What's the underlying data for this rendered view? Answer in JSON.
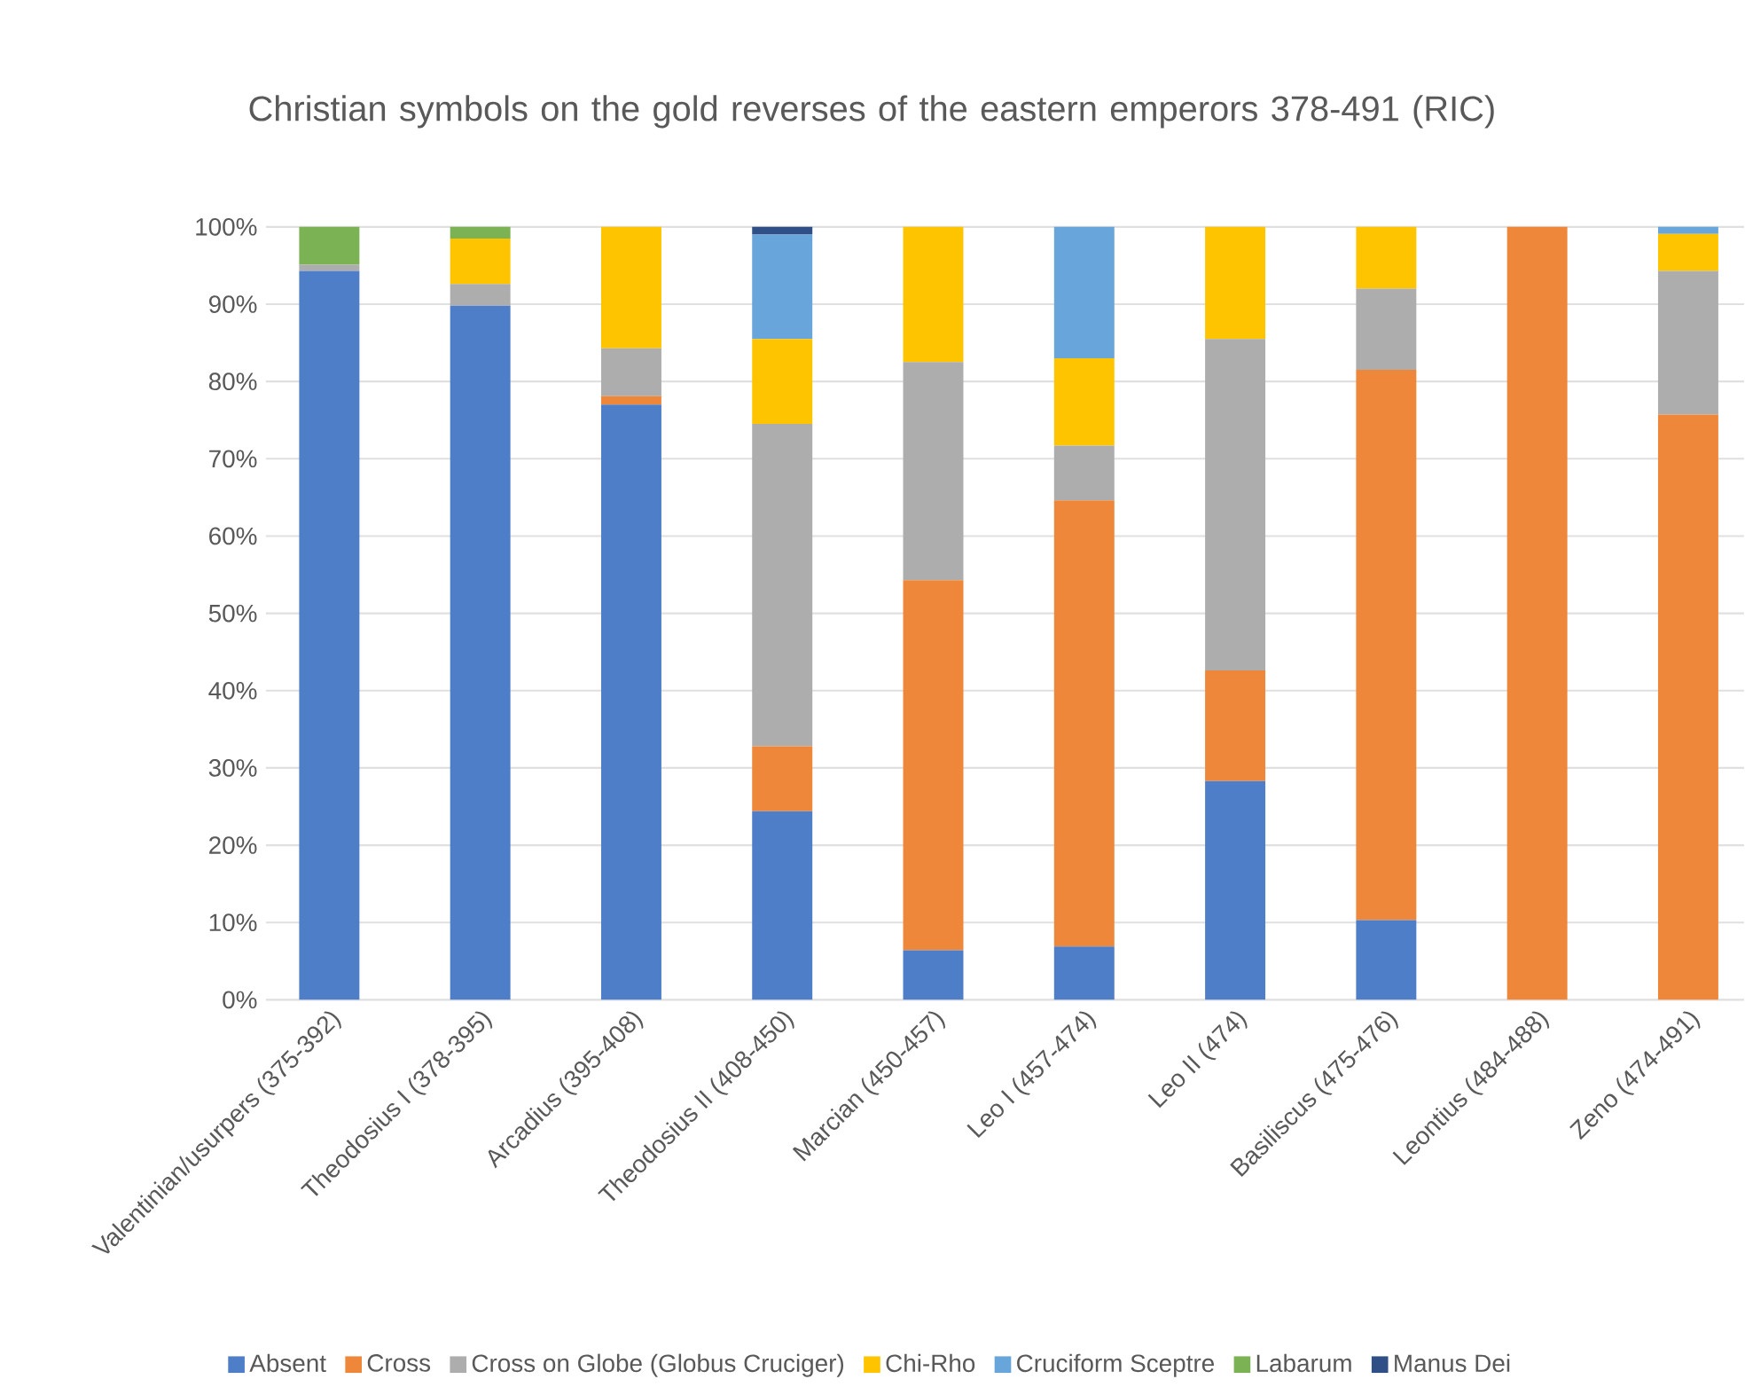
{
  "chart_data": {
    "type": "bar",
    "stacked": true,
    "title": "Christian symbols on the gold reverses of the eastern emperors 378-491 (RIC)",
    "categories": [
      "Valentinian/usurpers (375-392)",
      "Theodosius I (378-395)",
      "Arcadius (395-408)",
      "Theodosius II (408-450)",
      "Marcian (450-457)",
      "Leo I (457-474)",
      "Leo II (474)",
      "Basiliscus (475-476)",
      "Leontius (484-488)",
      "Zeno (474-491)"
    ],
    "series": [
      {
        "name": "Absent",
        "color": "#4f7ec9",
        "values": [
          94.3,
          89.8,
          77.0,
          24.4,
          6.4,
          6.9,
          28.3,
          10.3,
          0,
          0
        ]
      },
      {
        "name": "Cross",
        "color": "#ef873b",
        "values": [
          0,
          0,
          1.1,
          8.4,
          47.9,
          57.7,
          14.3,
          71.2,
          100,
          75.7
        ]
      },
      {
        "name": "Cross on Globe (Globus Cruciger)",
        "color": "#adadad",
        "values": [
          0.8,
          2.8,
          6.2,
          41.7,
          28.2,
          7.1,
          42.9,
          10.5,
          0,
          18.6
        ]
      },
      {
        "name": "Chi-Rho",
        "color": "#ffc400",
        "values": [
          0,
          5.9,
          15.7,
          11.0,
          17.5,
          11.3,
          14.5,
          8.0,
          0,
          4.8
        ]
      },
      {
        "name": "Cruciform Sceptre",
        "color": "#68a5da",
        "values": [
          0,
          0,
          0,
          13.5,
          0,
          17.0,
          0,
          0,
          0,
          0.9
        ]
      },
      {
        "name": "Labarum",
        "color": "#7bb254",
        "values": [
          4.9,
          1.5,
          0,
          0,
          0,
          0,
          0,
          0,
          0,
          0
        ]
      },
      {
        "name": "Manus Dei",
        "color": "#2f4f86",
        "values": [
          0,
          0,
          0,
          1.0,
          0,
          0,
          0,
          0,
          0,
          0
        ]
      }
    ],
    "ylim": [
      0,
      100
    ],
    "yticks": [
      {
        "value": 0,
        "label": "0%"
      },
      {
        "value": 10,
        "label": "10%"
      },
      {
        "value": 20,
        "label": "20%"
      },
      {
        "value": 30,
        "label": "30%"
      },
      {
        "value": 40,
        "label": "40%"
      },
      {
        "value": 50,
        "label": "50%"
      },
      {
        "value": 60,
        "label": "60%"
      },
      {
        "value": 70,
        "label": "70%"
      },
      {
        "value": 80,
        "label": "80%"
      },
      {
        "value": 90,
        "label": "90%"
      },
      {
        "value": 100,
        "label": "100%"
      }
    ],
    "grid": "y",
    "legend": "bottom"
  }
}
